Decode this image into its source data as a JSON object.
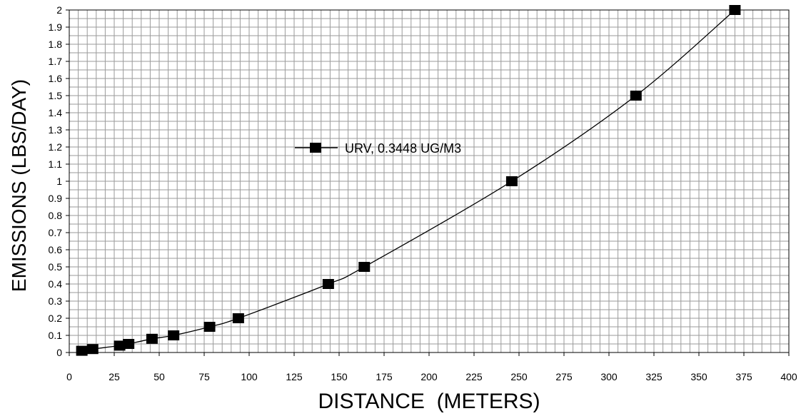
{
  "chart_data": {
    "type": "line",
    "title": "",
    "xlabel": "DISTANCE  (METERS)",
    "ylabel": "EMISSIONS (LBS/DAY)",
    "xlim": [
      0,
      400
    ],
    "ylim": [
      0,
      2
    ],
    "x_ticks": [
      0,
      25,
      50,
      75,
      100,
      125,
      150,
      175,
      200,
      225,
      250,
      275,
      300,
      325,
      350,
      375,
      400
    ],
    "y_ticks": [
      "0",
      "0.1",
      "0.2",
      "0.3",
      "0.4",
      "0.5",
      "0.6",
      "0.7",
      "0.8",
      "0.9",
      "1",
      "1.1",
      "1.2",
      "1.3",
      "1.4",
      "1.5",
      "1.6",
      "1.7",
      "1.8",
      "1.9",
      "2"
    ],
    "grid": true,
    "legend_position": "center",
    "series": [
      {
        "name": "URV, 0.3448 UG/M3",
        "color": "#000000",
        "marker": "square",
        "x": [
          7,
          13,
          28,
          33,
          46,
          58,
          78,
          94,
          144,
          164,
          246,
          315,
          370
        ],
        "y": [
          0.01,
          0.02,
          0.04,
          0.05,
          0.08,
          0.1,
          0.15,
          0.2,
          0.4,
          0.5,
          1.0,
          1.5,
          2.0
        ]
      }
    ]
  }
}
